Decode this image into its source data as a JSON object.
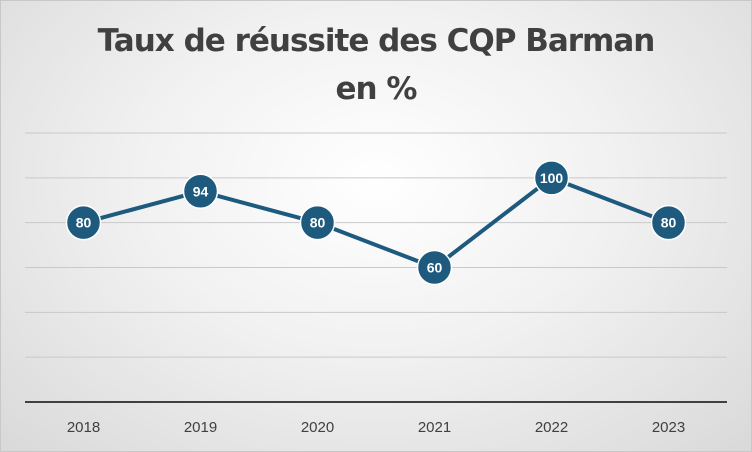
{
  "chart_data": {
    "type": "line",
    "title": "Taux de réussite des CQP Barman",
    "subtitle": "en %",
    "categories": [
      "2018",
      "2019",
      "2020",
      "2021",
      "2022",
      "2023"
    ],
    "series": [
      {
        "values": [
          80,
          94,
          80,
          60,
          100,
          80
        ],
        "data_labels": [
          "80",
          "94",
          "80",
          "60",
          "100",
          "80"
        ]
      }
    ],
    "ylim": [
      0,
      120
    ],
    "gridlines": true,
    "y_tick_labels_visible": false,
    "legend": "none",
    "colors": {
      "line": "#1d5a7e",
      "marker": "#1d5a7e",
      "marker_border": "#ffffff",
      "grid": "#c9c9c9",
      "axis": "#404040",
      "label": "#ffffff"
    }
  }
}
